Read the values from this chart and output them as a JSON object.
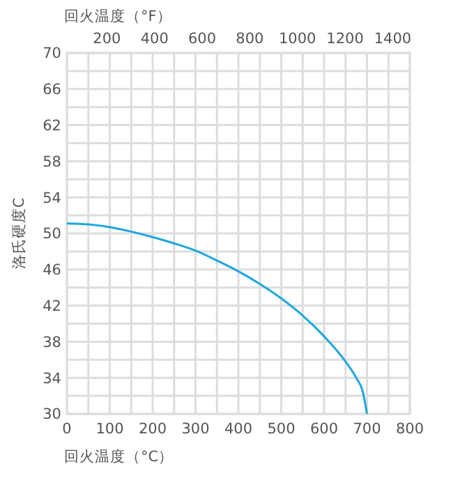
{
  "chart_data": {
    "type": "line",
    "xlabel": "回火温度（°C）",
    "x2label": "回火温度（°F）",
    "ylabel": "洛氏硬度C",
    "x": [
      0,
      50,
      100,
      150,
      200,
      250,
      300,
      350,
      400,
      450,
      500,
      550,
      600,
      650,
      675,
      690,
      700
    ],
    "series": [
      {
        "color": "#1aa7e0",
        "values": [
          51.1,
          51.0,
          50.7,
          50.2,
          49.6,
          48.9,
          48.1,
          47.0,
          45.8,
          44.4,
          42.8,
          40.9,
          38.6,
          35.8,
          34.0,
          32.5,
          30
        ]
      }
    ],
    "xlim": [
      0,
      800
    ],
    "xticks": [
      0,
      {
        "value": 50,
        "label": null
      },
      100,
      {
        "value": 150,
        "label": null
      },
      200,
      {
        "value": 250,
        "label": null
      },
      300,
      {
        "value": 350,
        "label": null
      },
      400,
      {
        "value": 450,
        "label": null
      },
      500,
      {
        "value": 550,
        "label": null
      },
      600,
      {
        "value": 650,
        "label": null
      },
      700,
      {
        "value": 750,
        "label": null
      },
      800
    ],
    "x2lim": [
      32,
      1472
    ],
    "x2ticks": [
      200,
      400,
      600,
      800,
      1000,
      1200,
      1400
    ],
    "ylim": [
      30,
      70
    ],
    "yticks": [
      30,
      {
        "value": 32,
        "label": null
      },
      34,
      {
        "value": 36,
        "label": null
      },
      38,
      {
        "value": 40,
        "label": null
      },
      42,
      {
        "value": 44,
        "label": null
      },
      46,
      {
        "value": 48,
        "label": null
      },
      50,
      {
        "value": 52,
        "label": null
      },
      54,
      {
        "value": 56,
        "label": null
      },
      58,
      {
        "value": 60,
        "label": null
      },
      62,
      {
        "value": 64,
        "label": null
      },
      66,
      {
        "value": 68,
        "label": null
      },
      70
    ],
    "grid": true,
    "marker": "none",
    "line_style": "solid"
  }
}
